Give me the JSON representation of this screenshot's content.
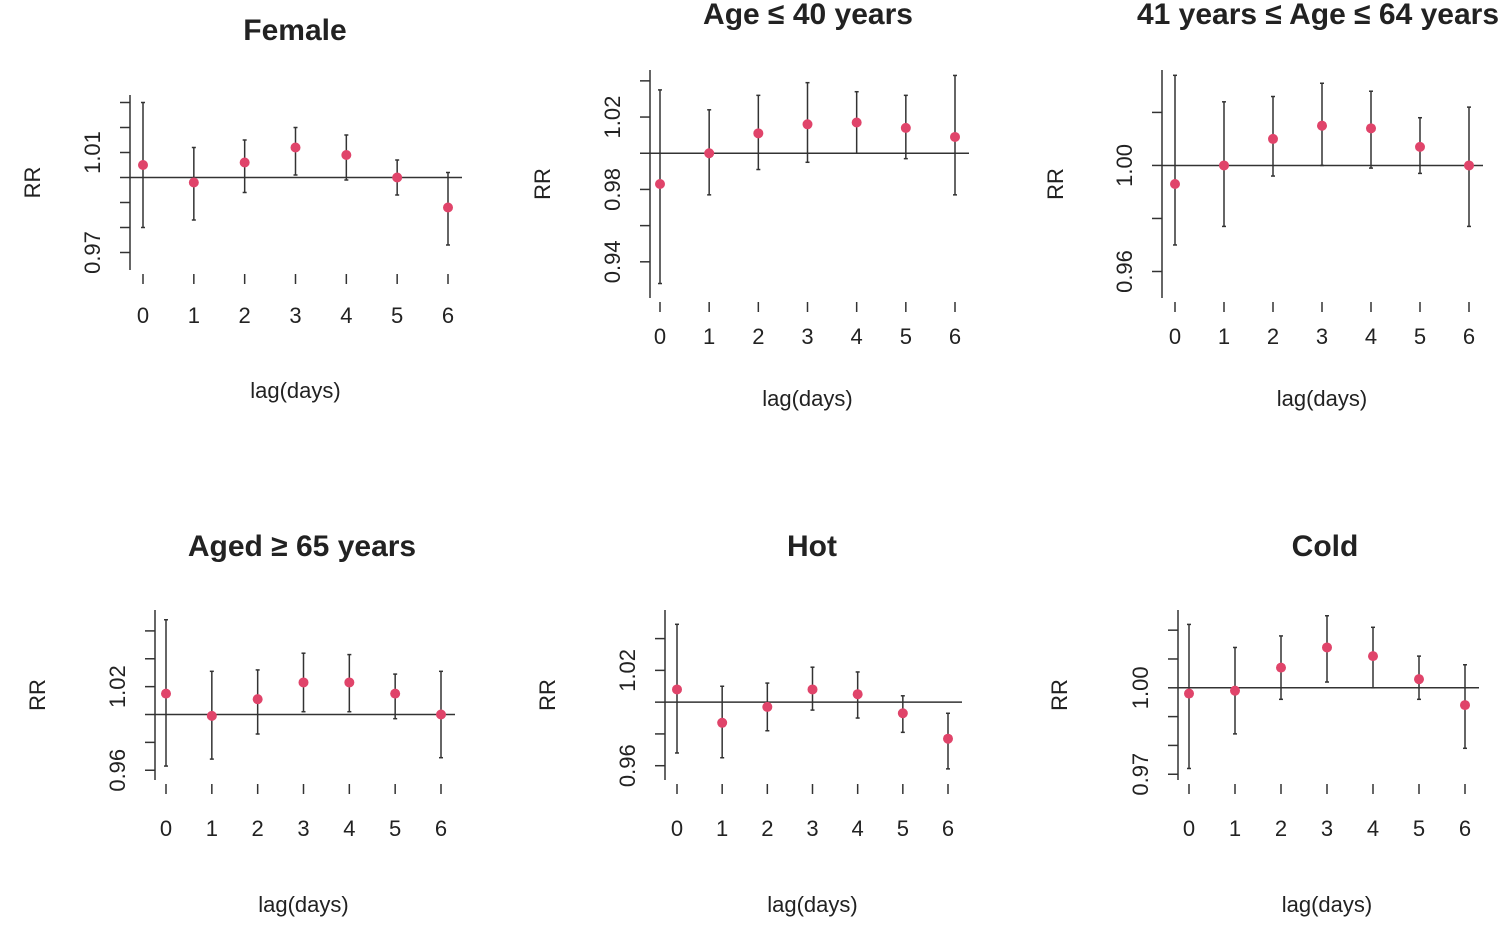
{
  "colors": {
    "point": "#e0446a",
    "line": "#333333",
    "background": "#ffffff"
  },
  "chart_data": [
    {
      "type": "scatter",
      "title": "Female",
      "xlabel": "lag(days)",
      "ylabel": "RR",
      "x": [
        0,
        1,
        2,
        3,
        4,
        5,
        6
      ],
      "xticks": [
        "0",
        "1",
        "2",
        "3",
        "4",
        "5",
        "6"
      ],
      "y": [
        1.005,
        0.998,
        1.006,
        1.012,
        1.009,
        1.0,
        0.988
      ],
      "lower": [
        0.98,
        0.983,
        0.994,
        1.001,
        0.999,
        0.993,
        0.973
      ],
      "upper": [
        1.03,
        1.012,
        1.015,
        1.02,
        1.017,
        1.007,
        1.002
      ],
      "reference": 1.0,
      "ylim": [
        0.963,
        1.033
      ],
      "yticks": [
        0.97,
        0.98,
        0.99,
        1.0,
        1.01,
        1.02,
        1.03
      ],
      "ytick_labels": [
        "0.97",
        "",
        "",
        "",
        "1.01",
        "",
        ""
      ]
    },
    {
      "type": "scatter",
      "title": "Age ≤ 40 years",
      "xlabel": "lag(days)",
      "ylabel": "RR",
      "x": [
        0,
        1,
        2,
        3,
        4,
        5,
        6
      ],
      "xticks": [
        "0",
        "1",
        "2",
        "3",
        "4",
        "5",
        "6"
      ],
      "y": [
        0.983,
        1.0,
        1.011,
        1.016,
        1.017,
        1.014,
        1.009
      ],
      "lower": [
        0.928,
        0.977,
        0.991,
        0.995,
        1.0,
        0.997,
        0.977
      ],
      "upper": [
        1.035,
        1.024,
        1.032,
        1.039,
        1.034,
        1.032,
        1.043
      ],
      "reference": 1.0,
      "ylim": [
        0.92,
        1.046
      ],
      "yticks": [
        0.94,
        0.96,
        0.98,
        1.0,
        1.02,
        1.04
      ],
      "ytick_labels": [
        "0.94",
        "",
        "0.98",
        "",
        "1.02",
        ""
      ]
    },
    {
      "type": "scatter",
      "title": "41 years ≤ Age ≤ 64 years",
      "xlabel": "lag(days)",
      "ylabel": "RR",
      "x": [
        0,
        1,
        2,
        3,
        4,
        5,
        6
      ],
      "xticks": [
        "0",
        "1",
        "2",
        "3",
        "4",
        "5",
        "6"
      ],
      "y": [
        0.993,
        1.0,
        1.01,
        1.015,
        1.014,
        1.007,
        1.0
      ],
      "lower": [
        0.97,
        0.977,
        0.996,
        1.0,
        0.999,
        0.997,
        0.977
      ],
      "upper": [
        1.034,
        1.024,
        1.026,
        1.031,
        1.028,
        1.018,
        1.022
      ],
      "reference": 1.0,
      "ylim": [
        0.95,
        1.036
      ],
      "yticks": [
        0.96,
        0.98,
        1.0,
        1.02
      ],
      "ytick_labels": [
        "0.96",
        "",
        "1.00",
        ""
      ]
    },
    {
      "type": "scatter",
      "title": "Aged ≥ 65 years",
      "xlabel": "lag(days)",
      "ylabel": "RR",
      "x": [
        0,
        1,
        2,
        3,
        4,
        5,
        6
      ],
      "xticks": [
        "0",
        "1",
        "2",
        "3",
        "4",
        "5",
        "6"
      ],
      "y": [
        1.015,
        0.999,
        1.011,
        1.023,
        1.023,
        1.015,
        1.0
      ],
      "lower": [
        0.963,
        0.968,
        0.986,
        1.002,
        1.002,
        0.997,
        0.969
      ],
      "upper": [
        1.068,
        1.031,
        1.032,
        1.044,
        1.043,
        1.029,
        1.031
      ],
      "reference": 1.0,
      "ylim": [
        0.953,
        1.075
      ],
      "yticks": [
        0.96,
        0.98,
        1.0,
        1.02,
        1.04,
        1.06
      ],
      "ytick_labels": [
        "0.96",
        "",
        "",
        "1.02",
        "",
        ""
      ]
    },
    {
      "type": "scatter",
      "title": "Hot",
      "xlabel": "lag(days)",
      "ylabel": "RR",
      "x": [
        0,
        1,
        2,
        3,
        4,
        5,
        6
      ],
      "xticks": [
        "0",
        "1",
        "2",
        "3",
        "4",
        "5",
        "6"
      ],
      "y": [
        1.008,
        0.987,
        0.997,
        1.008,
        1.005,
        0.993,
        0.977
      ],
      "lower": [
        0.968,
        0.965,
        0.982,
        0.995,
        0.99,
        0.981,
        0.958
      ],
      "upper": [
        1.049,
        1.01,
        1.012,
        1.022,
        1.019,
        1.004,
        0.993
      ],
      "reference": 1.0,
      "ylim": [
        0.951,
        1.058
      ],
      "yticks": [
        0.96,
        0.98,
        1.0,
        1.02,
        1.04
      ],
      "ytick_labels": [
        "0.96",
        "",
        "",
        "1.02",
        ""
      ]
    },
    {
      "type": "scatter",
      "title": "Cold",
      "xlabel": "lag(days)",
      "ylabel": "RR",
      "x": [
        0,
        1,
        2,
        3,
        4,
        5,
        6
      ],
      "xticks": [
        "0",
        "1",
        "2",
        "3",
        "4",
        "5",
        "6"
      ],
      "y": [
        0.998,
        0.999,
        1.007,
        1.014,
        1.011,
        1.003,
        0.994
      ],
      "lower": [
        0.972,
        0.984,
        0.996,
        1.002,
        1.0,
        0.996,
        0.979
      ],
      "upper": [
        1.022,
        1.014,
        1.018,
        1.025,
        1.021,
        1.011,
        1.008
      ],
      "reference": 1.0,
      "ylim": [
        0.968,
        1.027
      ],
      "yticks": [
        0.97,
        0.98,
        0.99,
        1.0,
        1.01,
        1.02
      ],
      "ytick_labels": [
        "0.97",
        "",
        "",
        "1.00",
        "",
        ""
      ]
    }
  ]
}
